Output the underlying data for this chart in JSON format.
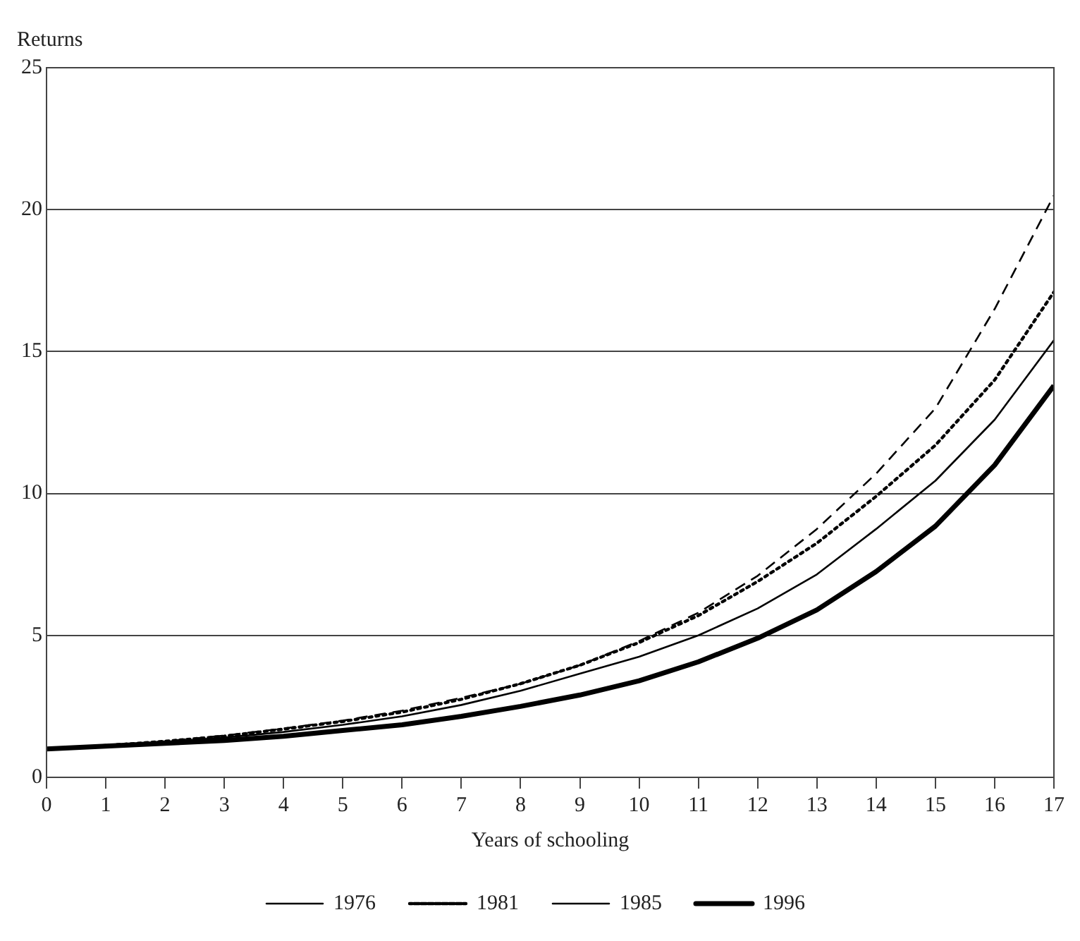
{
  "chart_data": {
    "type": "line",
    "ylabel": "Returns",
    "xlabel": "Years of schooling",
    "x": [
      0,
      1,
      2,
      3,
      4,
      5,
      6,
      7,
      8,
      9,
      10,
      11,
      12,
      13,
      14,
      15,
      16,
      17
    ],
    "series": [
      {
        "name": "1976",
        "color": "#000000",
        "line_style": "solid",
        "values": [
          1.0,
          1.1,
          1.25,
          1.4,
          1.6,
          1.85,
          2.15,
          2.55,
          3.05,
          3.65,
          4.25,
          5.0,
          5.95,
          7.15,
          8.75,
          10.45,
          12.6,
          15.4
        ]
      },
      {
        "name": "1981",
        "color": "#000000",
        "line_style": "dotted",
        "values": [
          1.0,
          1.12,
          1.27,
          1.45,
          1.7,
          1.97,
          2.3,
          2.75,
          3.3,
          3.95,
          4.75,
          5.7,
          6.9,
          8.25,
          9.9,
          11.7,
          14.0,
          17.1
        ]
      },
      {
        "name": "1985",
        "color": "#000000",
        "line_style": "dashed",
        "values": [
          1.0,
          1.12,
          1.27,
          1.47,
          1.72,
          2.0,
          2.35,
          2.8,
          3.3,
          3.95,
          4.8,
          5.8,
          7.1,
          8.75,
          10.7,
          13.0,
          16.5,
          20.5
        ]
      },
      {
        "name": "1996",
        "color": "#000000",
        "line_style": "solid",
        "values": [
          1.0,
          1.1,
          1.2,
          1.3,
          1.45,
          1.65,
          1.85,
          2.15,
          2.5,
          2.9,
          3.4,
          4.07,
          4.9,
          5.9,
          7.25,
          8.85,
          11.0,
          13.8
        ]
      }
    ],
    "xlim": [
      0,
      17
    ],
    "xticks": [
      0,
      1,
      2,
      3,
      4,
      5,
      6,
      7,
      8,
      9,
      10,
      11,
      12,
      13,
      14,
      15,
      16,
      17
    ],
    "ylim": [
      0,
      25
    ],
    "yticks": [
      0,
      5,
      10,
      15,
      20,
      25
    ],
    "grid": "y",
    "legend": "bottom",
    "marker": "none"
  }
}
